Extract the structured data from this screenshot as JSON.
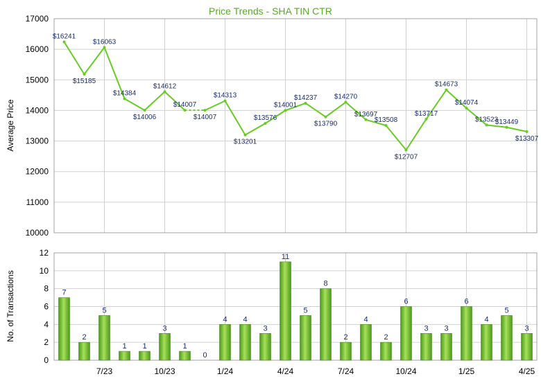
{
  "title": "Price Trends - SHA TIN CTR",
  "colors": {
    "line": "#66cc22",
    "bar_light": "#a8e05a",
    "bar_dark": "#4a9a1a",
    "title": "#5aa82a",
    "grid": "#d0d0d0",
    "label": "#1a2e6e"
  },
  "chart_data": [
    {
      "type": "line",
      "ylabel": "Average Price",
      "ylim": [
        10000,
        17000
      ],
      "yticks": [
        10000,
        11000,
        12000,
        13000,
        14000,
        15000,
        16000,
        17000
      ],
      "grid": true,
      "series": [
        {
          "values": [
            16241,
            15185,
            16063,
            14384,
            14006,
            14612,
            14007,
            14007,
            14313,
            13201,
            13576,
            14001,
            14237,
            13790,
            14270,
            13697,
            13508,
            12707,
            13717,
            14673,
            14074,
            13523,
            13449,
            13307
          ],
          "labels": [
            "$16241",
            "$15185",
            "$16063",
            "$14384",
            "$14006",
            "$14612",
            "$14007",
            "$14007",
            "$14313",
            "$13201",
            "$13576",
            "$14001",
            "$14237",
            "$13790",
            "$14270",
            "$13697",
            "$13508",
            "$12707",
            "$13717",
            "$14673",
            "$14074",
            "$13523",
            "$13449",
            "$13307"
          ],
          "dashed_segments": [
            6
          ]
        }
      ]
    },
    {
      "type": "bar",
      "ylabel": "No. of Transactions",
      "ylim": [
        0,
        12
      ],
      "yticks": [
        0,
        2,
        4,
        6,
        8,
        10,
        12
      ],
      "grid": true,
      "values": [
        7,
        2,
        5,
        1,
        1,
        3,
        1,
        0,
        4,
        4,
        3,
        11,
        5,
        8,
        2,
        4,
        2,
        6,
        3,
        3,
        6,
        4,
        5,
        3
      ],
      "labels": [
        "7",
        "2",
        "5",
        "1",
        "1",
        "3",
        "1",
        "0",
        "4",
        "4",
        "3",
        "11",
        "5",
        "8",
        "2",
        "4",
        "2",
        "6",
        "3",
        "3",
        "6",
        "4",
        "5",
        "3"
      ],
      "xtick_labels": [
        "7/23",
        "10/23",
        "1/24",
        "4/24",
        "7/24",
        "10/24",
        "1/25",
        "4/25"
      ],
      "xtick_positions": [
        2,
        5,
        8,
        11,
        14,
        17,
        20,
        23
      ]
    }
  ]
}
